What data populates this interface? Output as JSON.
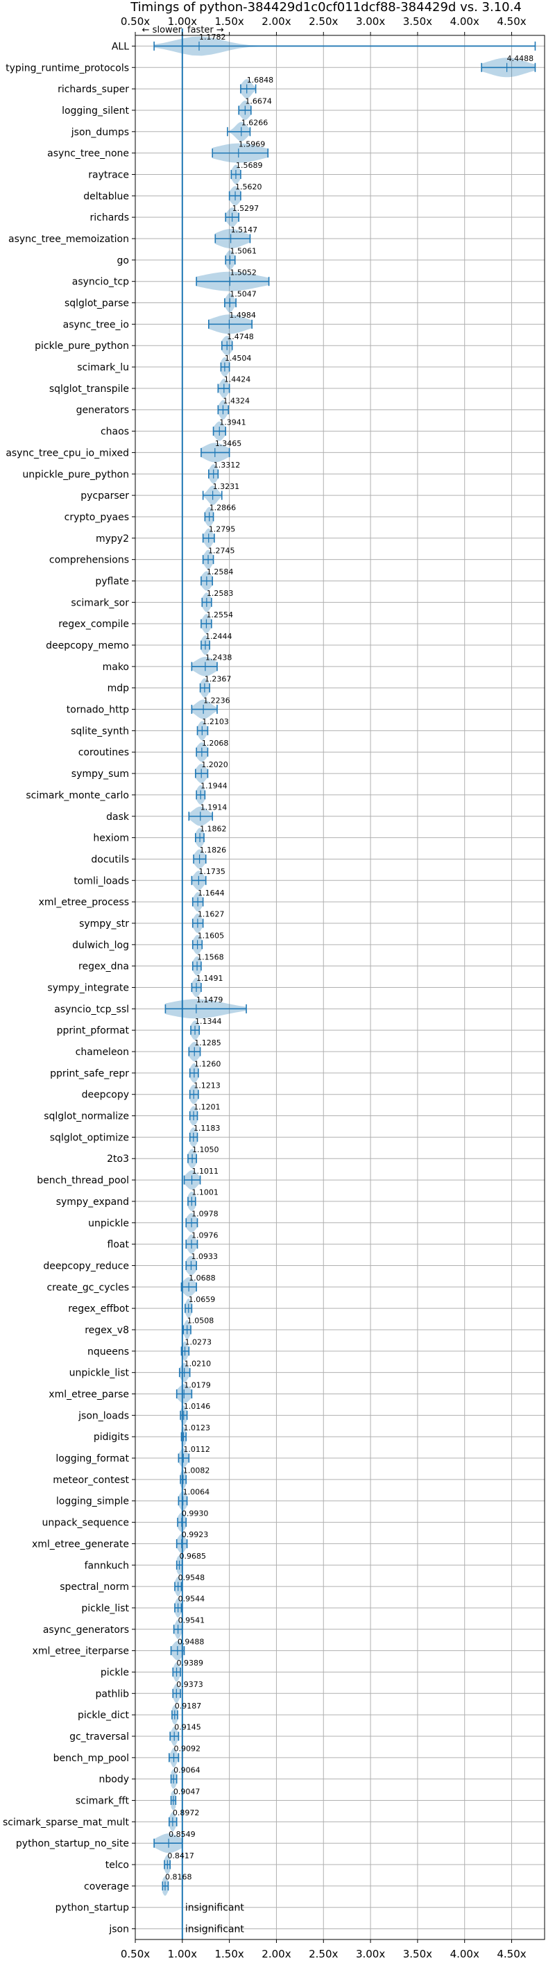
{
  "chart_data": {
    "type": "violin",
    "title": "Timings of python-384429d1c0cf011dcf88-384429d vs. 3.10.4",
    "direction_labels": {
      "slower": "← slower",
      "faster": "faster →"
    },
    "xlim": [
      0.5,
      4.85
    ],
    "baseline": 1.0,
    "xticks": [
      0.5,
      1.0,
      1.5,
      2.0,
      2.5,
      3.0,
      3.5,
      4.0,
      4.5
    ],
    "xtick_labels": [
      "0.50x",
      "1.00x",
      "1.50x",
      "2.00x",
      "2.50x",
      "3.00x",
      "3.50x",
      "4.00x",
      "4.50x"
    ],
    "benchmarks": [
      {
        "name": "ALL",
        "value": 1.1782,
        "label": "1.1782",
        "lo": 0.7,
        "hi": 4.75,
        "spread": 0.25
      },
      {
        "name": "typing_runtime_protocols",
        "value": 4.4488,
        "label": "4.4488",
        "lo": 4.18,
        "hi": 4.75,
        "spread": 0.2
      },
      {
        "name": "richards_super",
        "value": 1.6848,
        "label": "1.6848",
        "lo": 1.62,
        "hi": 1.78,
        "spread": 0.05
      },
      {
        "name": "logging_silent",
        "value": 1.6674,
        "label": "1.6674",
        "lo": 1.6,
        "hi": 1.73,
        "spread": 0.05
      },
      {
        "name": "json_dumps",
        "value": 1.6266,
        "label": "1.6266",
        "lo": 1.48,
        "hi": 1.72,
        "spread": 0.06
      },
      {
        "name": "async_tree_none",
        "value": 1.5969,
        "label": "1.5969",
        "lo": 1.32,
        "hi": 1.91,
        "spread": 0.25
      },
      {
        "name": "raytrace",
        "value": 1.5689,
        "label": "1.5689",
        "lo": 1.52,
        "hi": 1.62,
        "spread": 0.04
      },
      {
        "name": "deltablue",
        "value": 1.562,
        "label": "1.5620",
        "lo": 1.5,
        "hi": 1.62,
        "spread": 0.05
      },
      {
        "name": "richards",
        "value": 1.5297,
        "label": "1.5297",
        "lo": 1.46,
        "hi": 1.6,
        "spread": 0.05
      },
      {
        "name": "async_tree_memoization",
        "value": 1.5147,
        "label": "1.5147",
        "lo": 1.35,
        "hi": 1.72,
        "spread": 0.15
      },
      {
        "name": "go",
        "value": 1.5061,
        "label": "1.5061",
        "lo": 1.46,
        "hi": 1.56,
        "spread": 0.04
      },
      {
        "name": "asyncio_tcp",
        "value": 1.5052,
        "label": "1.5052",
        "lo": 1.15,
        "hi": 1.92,
        "spread": 0.3
      },
      {
        "name": "sqlglot_parse",
        "value": 1.5047,
        "label": "1.5047",
        "lo": 1.45,
        "hi": 1.57,
        "spread": 0.04
      },
      {
        "name": "async_tree_io",
        "value": 1.4984,
        "label": "1.4984",
        "lo": 1.28,
        "hi": 1.74,
        "spread": 0.18
      },
      {
        "name": "pickle_pure_python",
        "value": 1.4748,
        "label": "1.4748",
        "lo": 1.42,
        "hi": 1.53,
        "spread": 0.05
      },
      {
        "name": "scimark_lu",
        "value": 1.4504,
        "label": "1.4504",
        "lo": 1.41,
        "hi": 1.5,
        "spread": 0.04
      },
      {
        "name": "sqlglot_transpile",
        "value": 1.4424,
        "label": "1.4424",
        "lo": 1.38,
        "hi": 1.5,
        "spread": 0.04
      },
      {
        "name": "generators",
        "value": 1.4324,
        "label": "1.4324",
        "lo": 1.38,
        "hi": 1.49,
        "spread": 0.04
      },
      {
        "name": "chaos",
        "value": 1.3941,
        "label": "1.3941",
        "lo": 1.33,
        "hi": 1.46,
        "spread": 0.05
      },
      {
        "name": "async_tree_cpu_io_mixed",
        "value": 1.3465,
        "label": "1.3465",
        "lo": 1.2,
        "hi": 1.5,
        "spread": 0.12
      },
      {
        "name": "unpickle_pure_python",
        "value": 1.3312,
        "label": "1.3312",
        "lo": 1.28,
        "hi": 1.38,
        "spread": 0.04
      },
      {
        "name": "pycparser",
        "value": 1.3231,
        "label": "1.3231",
        "lo": 1.22,
        "hi": 1.42,
        "spread": 0.05
      },
      {
        "name": "crypto_pyaes",
        "value": 1.2866,
        "label": "1.2866",
        "lo": 1.24,
        "hi": 1.33,
        "spread": 0.04
      },
      {
        "name": "mypy2",
        "value": 1.2795,
        "label": "1.2795",
        "lo": 1.22,
        "hi": 1.34,
        "spread": 0.04
      },
      {
        "name": "comprehensions",
        "value": 1.2745,
        "label": "1.2745",
        "lo": 1.22,
        "hi": 1.33,
        "spread": 0.04
      },
      {
        "name": "pyflate",
        "value": 1.2584,
        "label": "1.2584",
        "lo": 1.2,
        "hi": 1.32,
        "spread": 0.05
      },
      {
        "name": "scimark_sor",
        "value": 1.2583,
        "label": "1.2583",
        "lo": 1.21,
        "hi": 1.31,
        "spread": 0.04
      },
      {
        "name": "regex_compile",
        "value": 1.2554,
        "label": "1.2554",
        "lo": 1.2,
        "hi": 1.31,
        "spread": 0.04
      },
      {
        "name": "deepcopy_memo",
        "value": 1.2444,
        "label": "1.2444",
        "lo": 1.2,
        "hi": 1.29,
        "spread": 0.04
      },
      {
        "name": "mako",
        "value": 1.2438,
        "label": "1.2438",
        "lo": 1.1,
        "hi": 1.37,
        "spread": 0.1
      },
      {
        "name": "mdp",
        "value": 1.2367,
        "label": "1.2367",
        "lo": 1.19,
        "hi": 1.29,
        "spread": 0.04
      },
      {
        "name": "tornado_http",
        "value": 1.2236,
        "label": "1.2236",
        "lo": 1.1,
        "hi": 1.37,
        "spread": 0.08
      },
      {
        "name": "sqlite_synth",
        "value": 1.2103,
        "label": "1.2103",
        "lo": 1.16,
        "hi": 1.27,
        "spread": 0.04
      },
      {
        "name": "coroutines",
        "value": 1.2068,
        "label": "1.2068",
        "lo": 1.15,
        "hi": 1.27,
        "spread": 0.05
      },
      {
        "name": "sympy_sum",
        "value": 1.202,
        "label": "1.2020",
        "lo": 1.14,
        "hi": 1.27,
        "spread": 0.05
      },
      {
        "name": "scimark_monte_carlo",
        "value": 1.1944,
        "label": "1.1944",
        "lo": 1.15,
        "hi": 1.24,
        "spread": 0.04
      },
      {
        "name": "dask",
        "value": 1.1914,
        "label": "1.1914",
        "lo": 1.07,
        "hi": 1.32,
        "spread": 0.08
      },
      {
        "name": "hexiom",
        "value": 1.1862,
        "label": "1.1862",
        "lo": 1.14,
        "hi": 1.23,
        "spread": 0.04
      },
      {
        "name": "docutils",
        "value": 1.1826,
        "label": "1.1826",
        "lo": 1.12,
        "hi": 1.25,
        "spread": 0.05
      },
      {
        "name": "tomli_loads",
        "value": 1.1735,
        "label": "1.1735",
        "lo": 1.1,
        "hi": 1.25,
        "spread": 0.05
      },
      {
        "name": "xml_etree_process",
        "value": 1.1644,
        "label": "1.1644",
        "lo": 1.11,
        "hi": 1.22,
        "spread": 0.04
      },
      {
        "name": "sympy_str",
        "value": 1.1627,
        "label": "1.1627",
        "lo": 1.11,
        "hi": 1.22,
        "spread": 0.04
      },
      {
        "name": "dulwich_log",
        "value": 1.1605,
        "label": "1.1605",
        "lo": 1.11,
        "hi": 1.21,
        "spread": 0.04
      },
      {
        "name": "regex_dna",
        "value": 1.1568,
        "label": "1.1568",
        "lo": 1.11,
        "hi": 1.2,
        "spread": 0.04
      },
      {
        "name": "sympy_integrate",
        "value": 1.1491,
        "label": "1.1491",
        "lo": 1.1,
        "hi": 1.2,
        "spread": 0.04
      },
      {
        "name": "asyncio_tcp_ssl",
        "value": 1.1479,
        "label": "1.1479",
        "lo": 0.82,
        "hi": 1.68,
        "spread": 0.3
      },
      {
        "name": "pprint_pformat",
        "value": 1.1344,
        "label": "1.1344",
        "lo": 1.09,
        "hi": 1.18,
        "spread": 0.04
      },
      {
        "name": "chameleon",
        "value": 1.1285,
        "label": "1.1285",
        "lo": 1.07,
        "hi": 1.19,
        "spread": 0.05
      },
      {
        "name": "pprint_safe_repr",
        "value": 1.126,
        "label": "1.1260",
        "lo": 1.08,
        "hi": 1.17,
        "spread": 0.04
      },
      {
        "name": "deepcopy",
        "value": 1.1213,
        "label": "1.1213",
        "lo": 1.08,
        "hi": 1.17,
        "spread": 0.04
      },
      {
        "name": "sqlglot_normalize",
        "value": 1.1201,
        "label": "1.1201",
        "lo": 1.08,
        "hi": 1.16,
        "spread": 0.04
      },
      {
        "name": "sqlglot_optimize",
        "value": 1.1183,
        "label": "1.1183",
        "lo": 1.08,
        "hi": 1.16,
        "spread": 0.04
      },
      {
        "name": "2to3",
        "value": 1.105,
        "label": "1.1050",
        "lo": 1.06,
        "hi": 1.15,
        "spread": 0.04
      },
      {
        "name": "bench_thread_pool",
        "value": 1.1011,
        "label": "1.1011",
        "lo": 1.02,
        "hi": 1.19,
        "spread": 0.06
      },
      {
        "name": "sympy_expand",
        "value": 1.1001,
        "label": "1.1001",
        "lo": 1.06,
        "hi": 1.14,
        "spread": 0.04
      },
      {
        "name": "unpickle",
        "value": 1.0978,
        "label": "1.0978",
        "lo": 1.04,
        "hi": 1.16,
        "spread": 0.05
      },
      {
        "name": "float",
        "value": 1.0976,
        "label": "1.0976",
        "lo": 1.04,
        "hi": 1.16,
        "spread": 0.04
      },
      {
        "name": "deepcopy_reduce",
        "value": 1.0933,
        "label": "1.0933",
        "lo": 1.04,
        "hi": 1.15,
        "spread": 0.05
      },
      {
        "name": "create_gc_cycles",
        "value": 1.0688,
        "label": "1.0688",
        "lo": 0.99,
        "hi": 1.15,
        "spread": 0.06
      },
      {
        "name": "regex_effbot",
        "value": 1.0659,
        "label": "1.0659",
        "lo": 1.03,
        "hi": 1.1,
        "spread": 0.03
      },
      {
        "name": "regex_v8",
        "value": 1.0508,
        "label": "1.0508",
        "lo": 1.01,
        "hi": 1.09,
        "spread": 0.03
      },
      {
        "name": "nqueens",
        "value": 1.0273,
        "label": "1.0273",
        "lo": 0.99,
        "hi": 1.07,
        "spread": 0.03
      },
      {
        "name": "unpickle_list",
        "value": 1.021,
        "label": "1.0210",
        "lo": 0.97,
        "hi": 1.08,
        "spread": 0.04
      },
      {
        "name": "xml_etree_parse",
        "value": 1.0179,
        "label": "1.0179",
        "lo": 0.94,
        "hi": 1.1,
        "spread": 0.06
      },
      {
        "name": "json_loads",
        "value": 1.0146,
        "label": "1.0146",
        "lo": 0.98,
        "hi": 1.05,
        "spread": 0.03
      },
      {
        "name": "pidigits",
        "value": 1.0123,
        "label": "1.0123",
        "lo": 0.99,
        "hi": 1.04,
        "spread": 0.03
      },
      {
        "name": "logging_format",
        "value": 1.0112,
        "label": "1.0112",
        "lo": 0.96,
        "hi": 1.07,
        "spread": 0.04
      },
      {
        "name": "meteor_contest",
        "value": 1.0082,
        "label": "1.0082",
        "lo": 0.98,
        "hi": 1.04,
        "spread": 0.03
      },
      {
        "name": "logging_simple",
        "value": 1.0064,
        "label": "1.0064",
        "lo": 0.96,
        "hi": 1.05,
        "spread": 0.04
      },
      {
        "name": "unpack_sequence",
        "value": 0.993,
        "label": "0.9930",
        "lo": 0.95,
        "hi": 1.04,
        "spread": 0.04
      },
      {
        "name": "xml_etree_generate",
        "value": 0.9923,
        "label": "0.9923",
        "lo": 0.94,
        "hi": 1.05,
        "spread": 0.04
      },
      {
        "name": "fannkuch",
        "value": 0.9685,
        "label": "0.9685",
        "lo": 0.94,
        "hi": 1.0,
        "spread": 0.03
      },
      {
        "name": "spectral_norm",
        "value": 0.9548,
        "label": "0.9548",
        "lo": 0.92,
        "hi": 0.99,
        "spread": 0.03
      },
      {
        "name": "pickle_list",
        "value": 0.9544,
        "label": "0.9544",
        "lo": 0.92,
        "hi": 0.99,
        "spread": 0.03
      },
      {
        "name": "async_generators",
        "value": 0.9541,
        "label": "0.9541",
        "lo": 0.91,
        "hi": 1.0,
        "spread": 0.03
      },
      {
        "name": "xml_etree_iterparse",
        "value": 0.9488,
        "label": "0.9488",
        "lo": 0.88,
        "hi": 1.02,
        "spread": 0.05
      },
      {
        "name": "pickle",
        "value": 0.9389,
        "label": "0.9389",
        "lo": 0.9,
        "hi": 0.98,
        "spread": 0.03
      },
      {
        "name": "pathlib",
        "value": 0.9373,
        "label": "0.9373",
        "lo": 0.9,
        "hi": 0.98,
        "spread": 0.03
      },
      {
        "name": "pickle_dict",
        "value": 0.9187,
        "label": "0.9187",
        "lo": 0.89,
        "hi": 0.95,
        "spread": 0.03
      },
      {
        "name": "gc_traversal",
        "value": 0.9145,
        "label": "0.9145",
        "lo": 0.87,
        "hi": 0.96,
        "spread": 0.03
      },
      {
        "name": "bench_mp_pool",
        "value": 0.9092,
        "label": "0.9092",
        "lo": 0.86,
        "hi": 0.96,
        "spread": 0.03
      },
      {
        "name": "nbody",
        "value": 0.9064,
        "label": "0.9064",
        "lo": 0.88,
        "hi": 0.94,
        "spread": 0.03
      },
      {
        "name": "scimark_fft",
        "value": 0.9047,
        "label": "0.9047",
        "lo": 0.88,
        "hi": 0.93,
        "spread": 0.03
      },
      {
        "name": "scimark_sparse_mat_mult",
        "value": 0.8972,
        "label": "0.8972",
        "lo": 0.86,
        "hi": 0.94,
        "spread": 0.03
      },
      {
        "name": "python_startup_no_site",
        "value": 0.8549,
        "label": "0.8549",
        "lo": 0.7,
        "hi": 1.0,
        "spread": 0.12
      },
      {
        "name": "telco",
        "value": 0.8417,
        "label": "0.8417",
        "lo": 0.81,
        "hi": 0.87,
        "spread": 0.03
      },
      {
        "name": "coverage",
        "value": 0.8168,
        "label": "0.8168",
        "lo": 0.79,
        "hi": 0.85,
        "spread": 0.03
      },
      {
        "name": "python_startup",
        "value": null,
        "label": "insignificant"
      },
      {
        "name": "json",
        "value": null,
        "label": "insignificant"
      }
    ]
  }
}
